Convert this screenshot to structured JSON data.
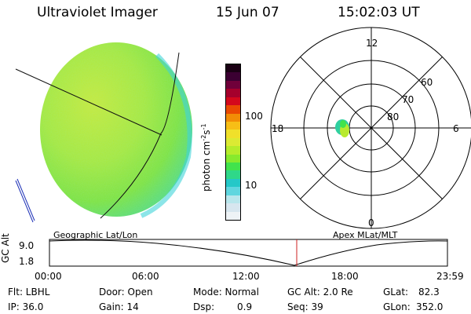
{
  "header": {
    "title": "Ultraviolet Imager",
    "date": "15 Jun 07",
    "time": "15:02:03 UT"
  },
  "colorbar": {
    "label": "photon cm-2s-1",
    "ticks": [
      "100",
      "10"
    ],
    "colors": [
      "#eef3f6",
      "#d7e6ef",
      "#b8e6ec",
      "#5fd6df",
      "#24c8c8",
      "#2fd889",
      "#41e34c",
      "#87ea2d",
      "#b6ec2b",
      "#dcea33",
      "#f0e02a",
      "#f7be16",
      "#f28d06",
      "#ea4a02",
      "#d4081c",
      "#a5002c",
      "#70003a",
      "#3b0032",
      "#1a0014"
    ]
  },
  "polar": {
    "labels": [
      "12",
      "18",
      "6",
      "0",
      "60",
      "70",
      "80"
    ]
  },
  "timeline": {
    "axis_title": "GC Alt",
    "ymax": "9.0",
    "ymin": "1.8",
    "left_title": "Geographic Lat/Lon",
    "right_title": "Apex  MLat/MLT",
    "ticks": [
      "00:00",
      "06:00",
      "12:00",
      "18:00",
      "23:59"
    ]
  },
  "info": {
    "flt": "Flt: LBHL",
    "ip": "IP: 36.0",
    "door": "Door: Open",
    "gain": "Gain: 14",
    "mode": "Mode: Normal",
    "dsp_label": "Dsp:",
    "dsp_value": "0.9",
    "gcalt": "GC Alt: 2.0 Re",
    "seq": "Seq: 39",
    "glat_label": "GLat:",
    "glat_value": "82.3",
    "glon_label": "GLon:",
    "glon_value": "352.0"
  }
}
